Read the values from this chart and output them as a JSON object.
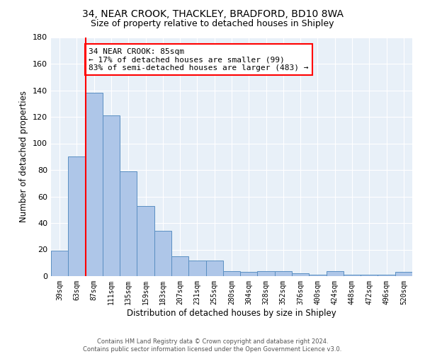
{
  "title1": "34, NEAR CROOK, THACKLEY, BRADFORD, BD10 8WA",
  "title2": "Size of property relative to detached houses in Shipley",
  "xlabel": "Distribution of detached houses by size in Shipley",
  "ylabel": "Number of detached properties",
  "categories": [
    "39sqm",
    "63sqm",
    "87sqm",
    "111sqm",
    "135sqm",
    "159sqm",
    "183sqm",
    "207sqm",
    "231sqm",
    "255sqm",
    "280sqm",
    "304sqm",
    "328sqm",
    "352sqm",
    "376sqm",
    "400sqm",
    "424sqm",
    "448sqm",
    "472sqm",
    "496sqm",
    "520sqm"
  ],
  "values": [
    19,
    90,
    138,
    121,
    79,
    53,
    34,
    15,
    12,
    12,
    4,
    3,
    4,
    4,
    2,
    1,
    4,
    1,
    1,
    1,
    3
  ],
  "bar_color": "#aec6e8",
  "bar_edge_color": "#5a8fc2",
  "red_line_index": 2,
  "annotation_text": "34 NEAR CROOK: 85sqm\n← 17% of detached houses are smaller (99)\n83% of semi-detached houses are larger (483) →",
  "annotation_box_color": "white",
  "annotation_edge_color": "red",
  "red_line_color": "red",
  "ylim": [
    0,
    180
  ],
  "yticks": [
    0,
    20,
    40,
    60,
    80,
    100,
    120,
    140,
    160,
    180
  ],
  "background_color": "#e8f0f8",
  "footer_text": "Contains HM Land Registry data © Crown copyright and database right 2024.\nContains public sector information licensed under the Open Government Licence v3.0.",
  "title1_fontsize": 10,
  "title2_fontsize": 9,
  "xlabel_fontsize": 8.5,
  "ylabel_fontsize": 8.5,
  "annotation_fontsize": 8,
  "footer_fontsize": 6
}
